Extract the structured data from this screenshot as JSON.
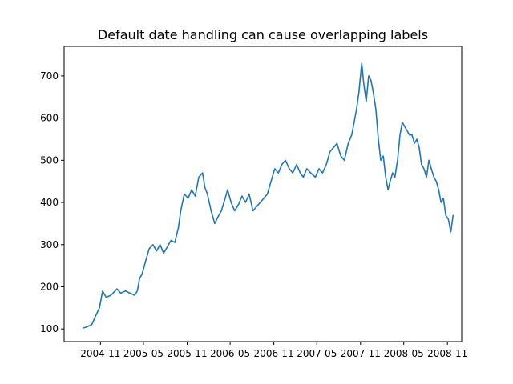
{
  "chart_data": {
    "type": "line",
    "title": "Default date handling can cause overlapping labels",
    "xlabel": "",
    "ylabel": "",
    "x_range": [
      "2004-06-01",
      "2008-12-31"
    ],
    "ylim": [
      70,
      770
    ],
    "grid": false,
    "line_color": "#1f77b4",
    "x_ticks": [
      "2004-11",
      "2005-05",
      "2005-11",
      "2006-05",
      "2006-11",
      "2007-05",
      "2007-11",
      "2008-05",
      "2008-11"
    ],
    "y_ticks": [
      "100",
      "200",
      "300",
      "400",
      "500",
      "600",
      "700"
    ],
    "series": [
      {
        "x": [
          "2004-08-19",
          "2004-09-05",
          "2004-09-25",
          "2004-10-15",
          "2004-10-28",
          "2004-11-10",
          "2004-11-25",
          "2004-12-15",
          "2005-01-10",
          "2005-01-25",
          "2005-02-15",
          "2005-03-05",
          "2005-03-25",
          "2005-04-05",
          "2005-04-15",
          "2005-04-25",
          "2005-05-10",
          "2005-05-25",
          "2005-06-10",
          "2005-06-25",
          "2005-07-10",
          "2005-07-25",
          "2005-08-10",
          "2005-08-25",
          "2005-09-10",
          "2005-09-25",
          "2005-10-05",
          "2005-10-20",
          "2005-11-05",
          "2005-11-20",
          "2005-12-05",
          "2005-12-20",
          "2006-01-05",
          "2006-01-15",
          "2006-01-25",
          "2006-02-10",
          "2006-02-25",
          "2006-03-10",
          "2006-03-25",
          "2006-04-10",
          "2006-04-20",
          "2006-05-05",
          "2006-05-20",
          "2006-06-05",
          "2006-06-20",
          "2006-07-05",
          "2006-07-20",
          "2006-08-05",
          "2006-08-20",
          "2006-09-05",
          "2006-09-20",
          "2006-10-05",
          "2006-10-20",
          "2006-11-05",
          "2006-11-20",
          "2006-12-05",
          "2006-12-20",
          "2007-01-05",
          "2007-01-20",
          "2007-02-05",
          "2007-02-20",
          "2007-03-05",
          "2007-03-20",
          "2007-04-05",
          "2007-04-25",
          "2007-05-10",
          "2007-05-25",
          "2007-06-10",
          "2007-06-25",
          "2007-07-10",
          "2007-07-25",
          "2007-08-10",
          "2007-08-25",
          "2007-09-10",
          "2007-09-25",
          "2007-10-05",
          "2007-10-15",
          "2007-10-25",
          "2007-11-06",
          "2007-11-15",
          "2007-11-25",
          "2007-12-05",
          "2007-12-15",
          "2007-12-25",
          "2008-01-05",
          "2008-01-15",
          "2008-01-25",
          "2008-02-05",
          "2008-02-15",
          "2008-02-25",
          "2008-03-05",
          "2008-03-15",
          "2008-03-25",
          "2008-04-05",
          "2008-04-15",
          "2008-04-25",
          "2008-05-05",
          "2008-05-15",
          "2008-05-25",
          "2008-06-05",
          "2008-06-15",
          "2008-06-25",
          "2008-07-05",
          "2008-07-15",
          "2008-07-25",
          "2008-08-05",
          "2008-08-15",
          "2008-08-25",
          "2008-09-05",
          "2008-09-15",
          "2008-09-25",
          "2008-10-05",
          "2008-10-15",
          "2008-10-25",
          "2008-11-05",
          "2008-11-15",
          "2008-11-25"
        ],
        "y": [
          102,
          105,
          110,
          135,
          150,
          190,
          175,
          180,
          195,
          185,
          190,
          185,
          180,
          190,
          220,
          230,
          260,
          290,
          300,
          285,
          300,
          280,
          295,
          310,
          305,
          340,
          380,
          420,
          410,
          430,
          415,
          460,
          470,
          435,
          420,
          380,
          350,
          365,
          380,
          410,
          430,
          400,
          380,
          395,
          415,
          400,
          420,
          380,
          390,
          400,
          410,
          420,
          450,
          480,
          470,
          490,
          500,
          480,
          470,
          490,
          470,
          460,
          480,
          470,
          460,
          480,
          470,
          490,
          520,
          530,
          540,
          510,
          500,
          540,
          560,
          590,
          620,
          660,
          730,
          680,
          640,
          700,
          690,
          660,
          620,
          550,
          500,
          510,
          460,
          430,
          450,
          470,
          460,
          500,
          560,
          590,
          580,
          570,
          560,
          560,
          540,
          550,
          530,
          490,
          480,
          460,
          500,
          480,
          460,
          450,
          430,
          400,
          410,
          370,
          360,
          330,
          370
        ]
      }
    ]
  }
}
